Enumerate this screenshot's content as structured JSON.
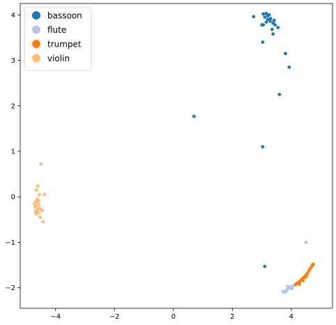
{
  "chart_data": {
    "type": "scatter",
    "title": "",
    "xlabel": "",
    "ylabel": "",
    "xlim": [
      -5.2,
      5.4
    ],
    "ylim": [
      -2.45,
      4.25
    ],
    "xticks": [
      -4,
      -2,
      0,
      2,
      4
    ],
    "yticks": [
      -2,
      -1,
      0,
      1,
      2,
      3,
      4
    ],
    "grid": false,
    "legend_position": "top-left",
    "series": [
      {
        "name": "bassoon",
        "color": "#1f77b4",
        "points": [
          [
            3.05,
            4.02
          ],
          [
            3.15,
            4.03
          ],
          [
            3.2,
            3.98
          ],
          [
            3.25,
            4.0
          ],
          [
            3.1,
            3.95
          ],
          [
            3.3,
            3.92
          ],
          [
            3.2,
            3.9
          ],
          [
            3.28,
            3.86
          ],
          [
            3.15,
            3.84
          ],
          [
            3.42,
            3.88
          ],
          [
            3.38,
            3.82
          ],
          [
            3.45,
            3.78
          ],
          [
            3.05,
            3.78
          ],
          [
            3.0,
            3.78
          ],
          [
            3.55,
            3.72
          ],
          [
            3.35,
            3.68
          ],
          [
            3.38,
            3.58
          ],
          [
            2.72,
            3.96
          ],
          [
            3.03,
            3.4
          ],
          [
            3.8,
            3.15
          ],
          [
            3.93,
            2.85
          ],
          [
            3.6,
            2.25
          ],
          [
            0.7,
            1.77
          ],
          [
            3.03,
            1.1
          ],
          [
            3.1,
            -1.53
          ]
        ]
      },
      {
        "name": "flute",
        "color": "#aec7e8",
        "points": [
          [
            4.5,
            -1.0
          ],
          [
            3.72,
            -2.08
          ],
          [
            3.78,
            -2.1
          ],
          [
            3.85,
            -2.05
          ],
          [
            3.9,
            -2.0
          ],
          [
            3.88,
            -1.97
          ],
          [
            3.95,
            -2.0
          ],
          [
            4.0,
            -1.98
          ],
          [
            4.05,
            -1.96
          ],
          [
            4.1,
            -1.95
          ],
          [
            4.02,
            -2.02
          ],
          [
            3.82,
            -2.08
          ]
        ]
      },
      {
        "name": "trumpet",
        "color": "#ff7f0e",
        "points": [
          [
            4.15,
            -1.93
          ],
          [
            4.2,
            -1.9
          ],
          [
            4.25,
            -1.88
          ],
          [
            4.3,
            -1.85
          ],
          [
            4.35,
            -1.82
          ],
          [
            4.38,
            -1.8
          ],
          [
            4.42,
            -1.78
          ],
          [
            4.45,
            -1.76
          ],
          [
            4.5,
            -1.72
          ],
          [
            4.55,
            -1.68
          ],
          [
            4.6,
            -1.62
          ],
          [
            4.65,
            -1.57
          ],
          [
            4.7,
            -1.53
          ],
          [
            4.72,
            -1.5
          ],
          [
            4.75,
            -1.48
          ],
          [
            4.28,
            -1.92
          ],
          [
            4.4,
            -1.84
          ],
          [
            4.52,
            -1.75
          ]
        ]
      },
      {
        "name": "violin",
        "color": "#ffbb78",
        "points": [
          [
            -4.5,
            0.72
          ],
          [
            -4.6,
            0.24
          ],
          [
            -4.65,
            0.15
          ],
          [
            -4.55,
            0.05
          ],
          [
            -4.38,
            0.05
          ],
          [
            -4.62,
            -0.05
          ],
          [
            -4.68,
            -0.1
          ],
          [
            -4.6,
            -0.12
          ],
          [
            -4.72,
            -0.15
          ],
          [
            -4.58,
            -0.18
          ],
          [
            -4.65,
            -0.2
          ],
          [
            -4.7,
            -0.22
          ],
          [
            -4.55,
            -0.25
          ],
          [
            -4.62,
            -0.28
          ],
          [
            -4.5,
            -0.28
          ],
          [
            -4.68,
            -0.32
          ],
          [
            -4.6,
            -0.35
          ],
          [
            -4.45,
            -0.3
          ],
          [
            -4.52,
            -0.45
          ],
          [
            -4.42,
            -0.55
          ],
          [
            -4.66,
            -0.38
          ],
          [
            -4.58,
            -0.08
          ]
        ]
      }
    ]
  }
}
